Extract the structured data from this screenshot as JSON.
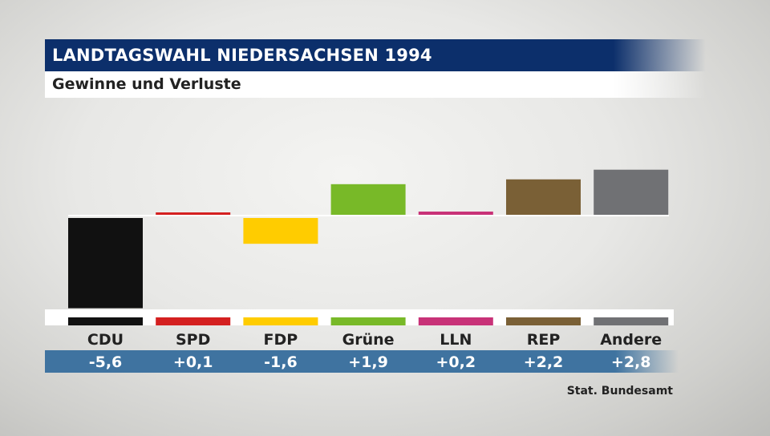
{
  "header": {
    "title": "LANDTAGSWAHL NIEDERSACHSEN 1994",
    "subtitle": "Gewinne und Verluste"
  },
  "source": "Stat. Bundesamt",
  "chart_data": {
    "type": "bar",
    "title": "LANDTAGSWAHL NIEDERSACHSEN 1994",
    "subtitle": "Gewinne und Verluste",
    "categories": [
      "CDU",
      "SPD",
      "FDP",
      "Grüne",
      "LLN",
      "REP",
      "Andere"
    ],
    "values": [
      -5.6,
      0.1,
      -1.6,
      1.9,
      0.2,
      2.2,
      2.8
    ],
    "value_labels": [
      "-5,6",
      "+0,1",
      "-1,6",
      "+1,9",
      "+0,2",
      "+2,2",
      "+2,8"
    ],
    "colors": [
      "#111111",
      "#d42020",
      "#ffcc00",
      "#78b928",
      "#c83278",
      "#7a6036",
      "#707174"
    ],
    "value_band_color": "#3f73a0",
    "grid": false,
    "legend": "none"
  }
}
